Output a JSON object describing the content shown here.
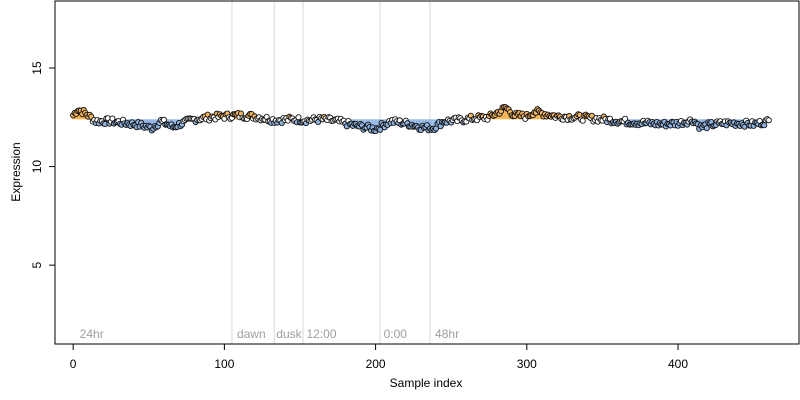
{
  "chart_data": {
    "type": "scatter",
    "title": "",
    "xlabel": "Sample index",
    "ylabel": "Expression",
    "xlim": [
      -12,
      480
    ],
    "ylim": [
      1,
      18.4
    ],
    "x_ticks": [
      0,
      100,
      200,
      300,
      400
    ],
    "x_tick_labels": [
      "0",
      "100",
      "200",
      "300",
      "400"
    ],
    "y_ticks": [
      5,
      10,
      15
    ],
    "y_tick_labels": [
      "5",
      "10",
      "15"
    ],
    "grid": false,
    "legend": "none",
    "phase_dividers": [
      105,
      133,
      152,
      203,
      236
    ],
    "phase_labels": [
      {
        "x": 3,
        "text": "24hr"
      },
      {
        "x": 107,
        "text": "dawn"
      },
      {
        "x": 133,
        "text": "dusk"
      },
      {
        "x": 153,
        "text": "12:00"
      },
      {
        "x": 204,
        "text": "0:00"
      },
      {
        "x": 238,
        "text": "48hr"
      }
    ],
    "baseline": 12.4,
    "n_points": 461,
    "anchors": [
      [
        0,
        12.6
      ],
      [
        3,
        12.9
      ],
      [
        6,
        12.8
      ],
      [
        10,
        12.6
      ],
      [
        15,
        12.3
      ],
      [
        25,
        12.3
      ],
      [
        35,
        12.2
      ],
      [
        45,
        12.1
      ],
      [
        52,
        11.95
      ],
      [
        58,
        12.3
      ],
      [
        66,
        12.0
      ],
      [
        72,
        12.2
      ],
      [
        80,
        12.4
      ],
      [
        90,
        12.5
      ],
      [
        100,
        12.55
      ],
      [
        108,
        12.6
      ],
      [
        120,
        12.55
      ],
      [
        133,
        12.35
      ],
      [
        145,
        12.4
      ],
      [
        155,
        12.35
      ],
      [
        165,
        12.4
      ],
      [
        175,
        12.3
      ],
      [
        185,
        12.1
      ],
      [
        193,
        12.0
      ],
      [
        200,
        11.9
      ],
      [
        210,
        12.3
      ],
      [
        220,
        12.2
      ],
      [
        230,
        12.0
      ],
      [
        238,
        11.95
      ],
      [
        245,
        12.3
      ],
      [
        255,
        12.35
      ],
      [
        265,
        12.45
      ],
      [
        275,
        12.5
      ],
      [
        282,
        12.8
      ],
      [
        286,
        13.0
      ],
      [
        292,
        12.6
      ],
      [
        300,
        12.55
      ],
      [
        305,
        12.8
      ],
      [
        310,
        12.7
      ],
      [
        320,
        12.55
      ],
      [
        335,
        12.5
      ],
      [
        350,
        12.4
      ],
      [
        362,
        12.3
      ],
      [
        370,
        12.25
      ],
      [
        380,
        12.2
      ],
      [
        390,
        12.15
      ],
      [
        400,
        12.2
      ],
      [
        410,
        12.35
      ],
      [
        415,
        12.0
      ],
      [
        420,
        12.1
      ],
      [
        430,
        12.2
      ],
      [
        440,
        12.2
      ],
      [
        450,
        12.15
      ],
      [
        460,
        12.3
      ]
    ],
    "colors": {
      "above": "#f5b461",
      "below": "#8fb3e0",
      "neutral": "#111111",
      "bar_above": "#f5a020",
      "bar_below": "#7aa6e0",
      "divider": "#d9d9d9",
      "phase_text": "#9e9e9e"
    }
  }
}
